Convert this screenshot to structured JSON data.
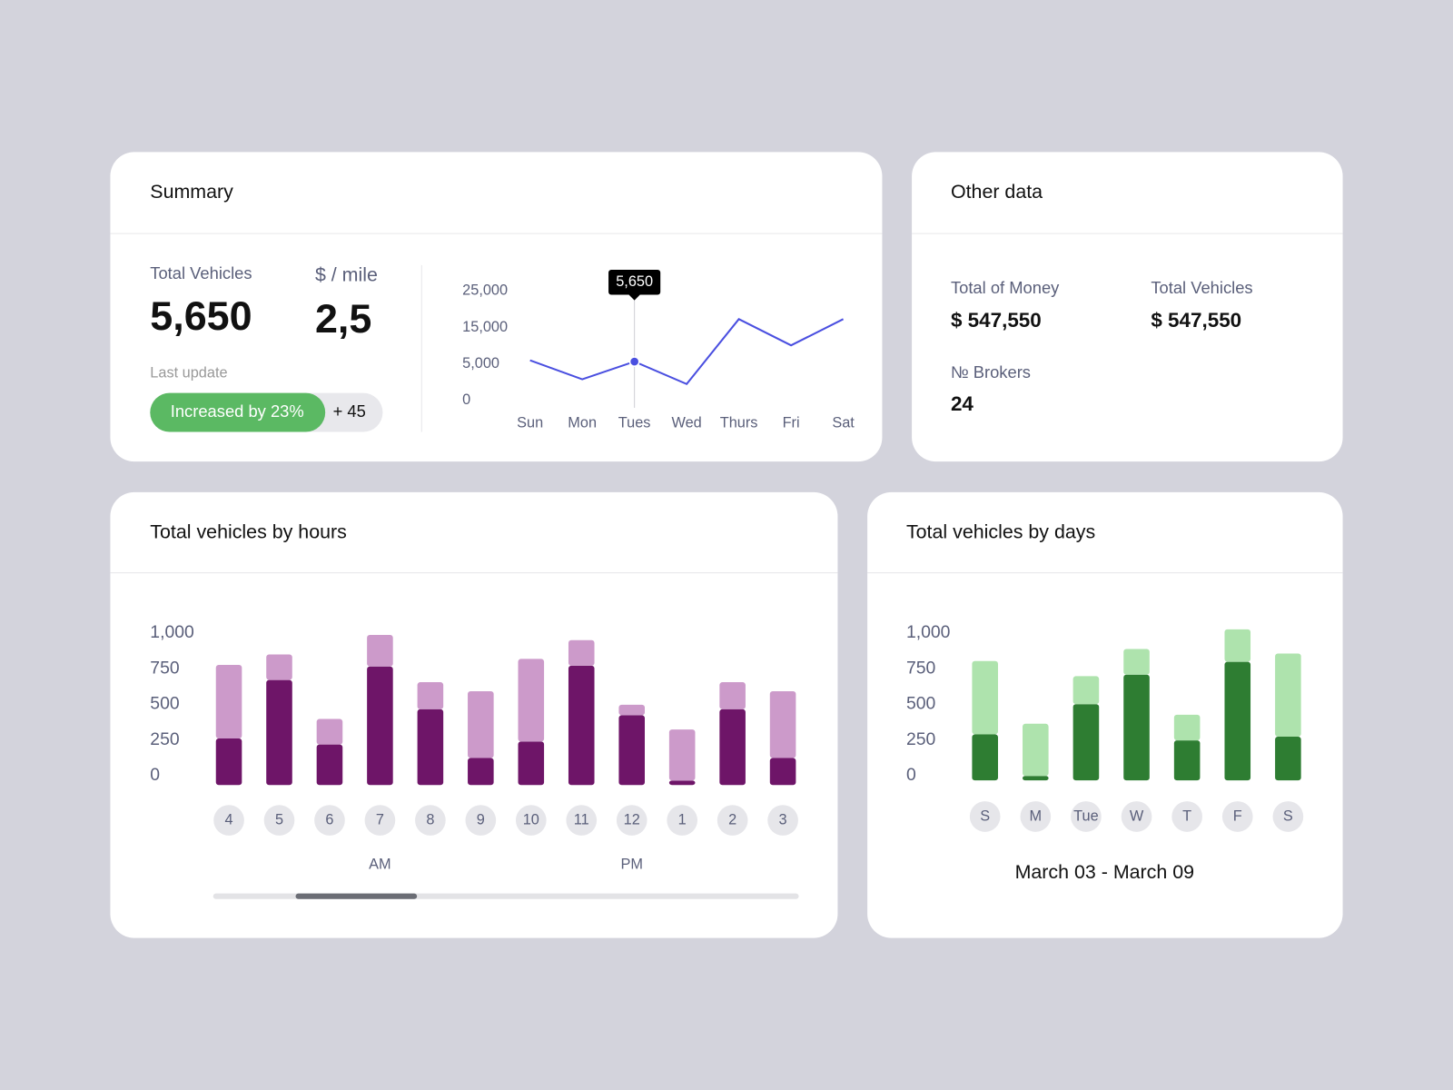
{
  "summary": {
    "title": "Summary",
    "total_vehicles_label": "Total Vehicles",
    "total_vehicles": "5,650",
    "rate_label": "$ / mile",
    "rate": "2,5",
    "last_update_label": "Last update",
    "badge": "Increased by 23%",
    "badge_extra": "+ 45"
  },
  "other_data": {
    "title": "Other data",
    "items": [
      {
        "label": "Total of Money",
        "value": "$ 547,550"
      },
      {
        "label": "Total Vehicles",
        "value": "$ 547,550"
      },
      {
        "label": "№ Brokers",
        "value": "24"
      }
    ]
  },
  "chart_data": [
    {
      "type": "line",
      "categories": [
        "Sun",
        "Mon",
        "Tues",
        "Wed",
        "Thurs",
        "Fri",
        "Sat"
      ],
      "values": [
        6000,
        2900,
        5650,
        2250,
        17300,
        10100,
        17300
      ],
      "value_labels": [
        null,
        null,
        "5,650",
        null,
        null,
        null,
        null
      ],
      "color": "#4a4fe0",
      "ylim": [
        0,
        25000
      ],
      "yticks": [
        0,
        {
          "value": 5000,
          "label": "5,000"
        },
        {
          "value": 15000,
          "label": "15,000"
        },
        {
          "value": 25000,
          "label": "25,000"
        }
      ]
    },
    {
      "type": "bar",
      "stacked": true,
      "title": "Total vehicles by hours",
      "categories": [
        "4",
        "5",
        "6",
        "7",
        "8",
        "9",
        "10",
        "11",
        "12",
        "1",
        "2",
        "3"
      ],
      "groups": [
        "AM",
        "PM"
      ],
      "series": [
        {
          "color": "#6e1568",
          "values": [
            310,
            700,
            270,
            790,
            505,
            180,
            290,
            795,
            465,
            30,
            505,
            180
          ]
        },
        {
          "color": "#cc9aca",
          "values": [
            490,
            170,
            170,
            210,
            180,
            445,
            550,
            170,
            70,
            340,
            180,
            445
          ]
        }
      ],
      "ylim": [
        0,
        1000
      ],
      "yticks": [
        0,
        250,
        500,
        750,
        {
          "value": 1000,
          "label": "1,000"
        }
      ]
    },
    {
      "type": "bar",
      "stacked": true,
      "title": "Total vehicles by days",
      "subtitle": "March 03 - March 09",
      "categories": [
        "S",
        "M",
        "Tue",
        "W",
        "T",
        "F",
        "S"
      ],
      "series": [
        {
          "color": "#2e7d32",
          "values": [
            305,
            30,
            505,
            700,
            265,
            785,
            290
          ]
        },
        {
          "color": "#aee3ad",
          "values": [
            485,
            345,
            185,
            170,
            170,
            215,
            550
          ]
        }
      ],
      "ylim": [
        0,
        1000
      ],
      "yticks": [
        0,
        250,
        500,
        750,
        {
          "value": 1000,
          "label": "1,000"
        }
      ]
    }
  ]
}
